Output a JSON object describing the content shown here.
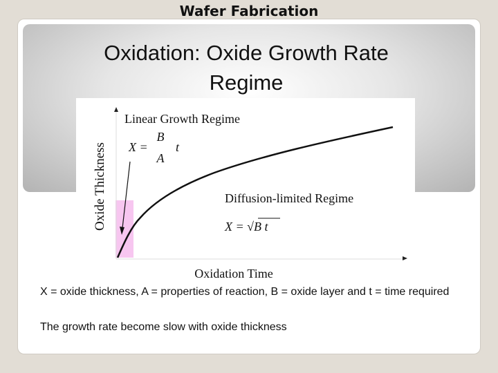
{
  "header": {
    "title": "Wafer Fabrication"
  },
  "slide": {
    "title": "Oxidation: Oxide Growth Rate Regime"
  },
  "figure": {
    "y_axis_label": "Oxide Thickness",
    "x_axis_label": "Oxidation Time",
    "linear_regime": {
      "label": "Linear Growth Regime",
      "equation_lhs": "X =",
      "numerator": "B",
      "denominator": "A",
      "factor": "t"
    },
    "diffusion_regime": {
      "label": "Diffusion-limited Regime",
      "equation": "X = √B t"
    }
  },
  "captions": [
    "X = oxide thickness, A = properties of reaction, B = oxide layer and t = time required",
    "The growth rate become slow with oxide thickness"
  ]
}
